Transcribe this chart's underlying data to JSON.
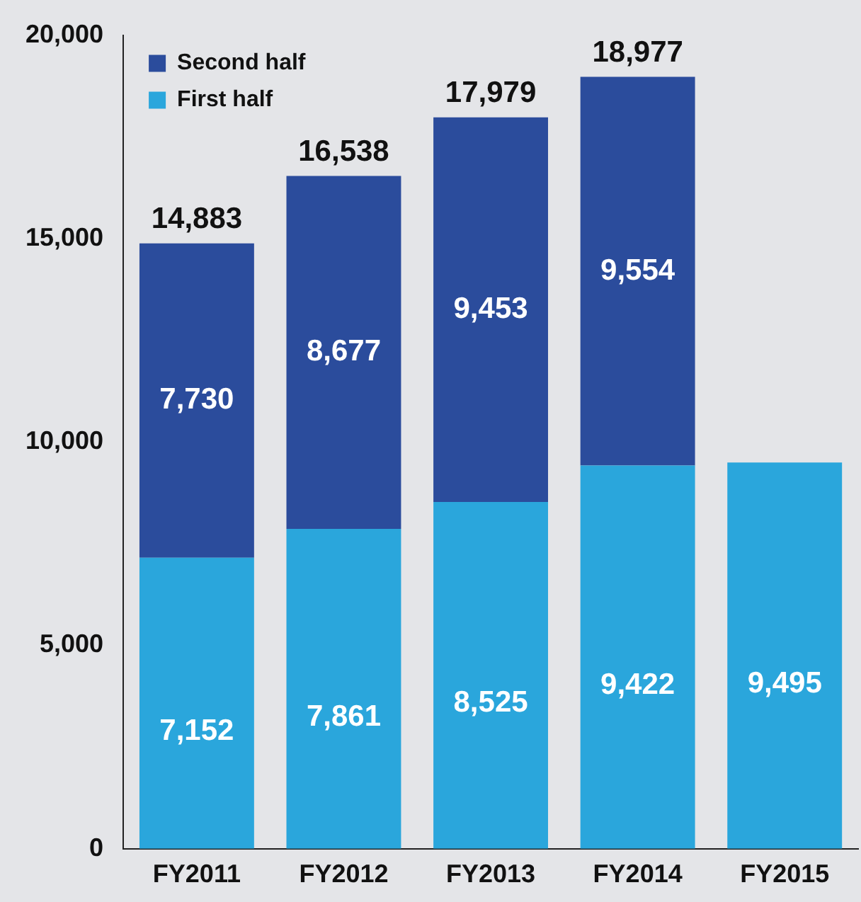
{
  "chart_data": {
    "type": "bar",
    "stacked": true,
    "categories": [
      "FY2011",
      "FY2012",
      "FY2013",
      "FY2014",
      "FY2015"
    ],
    "series": [
      {
        "name": "First half",
        "color": "#2aa6dc",
        "values": [
          7152,
          7861,
          8525,
          9422,
          9495
        ],
        "value_labels": [
          "7,152",
          "7,861",
          "8,525",
          "9,422",
          "9,495"
        ]
      },
      {
        "name": "Second half",
        "color": "#2b4c9c",
        "values": [
          7730,
          8677,
          9453,
          9554,
          null
        ],
        "value_labels": [
          "7,730",
          "8,677",
          "9,453",
          "9,554",
          null
        ]
      }
    ],
    "ylim": [
      0,
      20000
    ],
    "yticks": [
      0,
      {
        "value": 5000,
        "label": "5,000"
      },
      {
        "value": 10000,
        "label": "10,000"
      },
      {
        "value": 15000,
        "label": "15,000"
      },
      {
        "value": 20000,
        "label": "20,000"
      }
    ],
    "totals": [
      "14,883",
      "16,538",
      "17,979",
      "18,977",
      null
    ],
    "grid": false,
    "legend": "top left"
  }
}
